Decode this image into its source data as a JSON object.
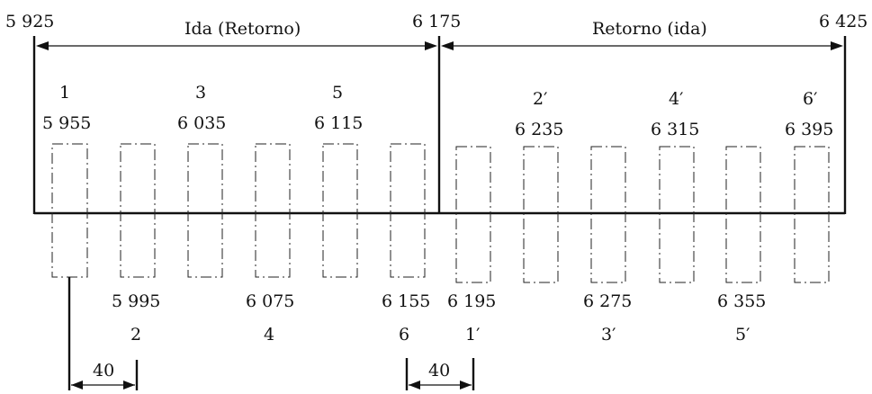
{
  "header": {
    "left_freq": "5 925",
    "mid_freq": "6 175",
    "right_freq": "6 425",
    "left_band_label": "Ida (Retorno)",
    "right_band_label": "Retorno (ida)"
  },
  "upper_left_channels": [
    {
      "num": "1",
      "freq": "5 955"
    },
    {
      "num": "3",
      "freq": "6 035"
    },
    {
      "num": "5",
      "freq": "6 115"
    }
  ],
  "lower_left_channels": [
    {
      "num": "2",
      "freq": "5 995"
    },
    {
      "num": "4",
      "freq": "6 075"
    },
    {
      "num": "6",
      "freq": "6 155"
    }
  ],
  "upper_right_channels": [
    {
      "num": "2′",
      "freq": "6 235"
    },
    {
      "num": "4′",
      "freq": "6 315"
    },
    {
      "num": "6′",
      "freq": "6 395"
    }
  ],
  "lower_right_channels": [
    {
      "num": "1′",
      "freq": "6 195"
    },
    {
      "num": "3′",
      "freq": "6 275"
    },
    {
      "num": "5′",
      "freq": "6 355"
    }
  ],
  "spacing": {
    "left_label": "40",
    "right_label": "40"
  }
}
